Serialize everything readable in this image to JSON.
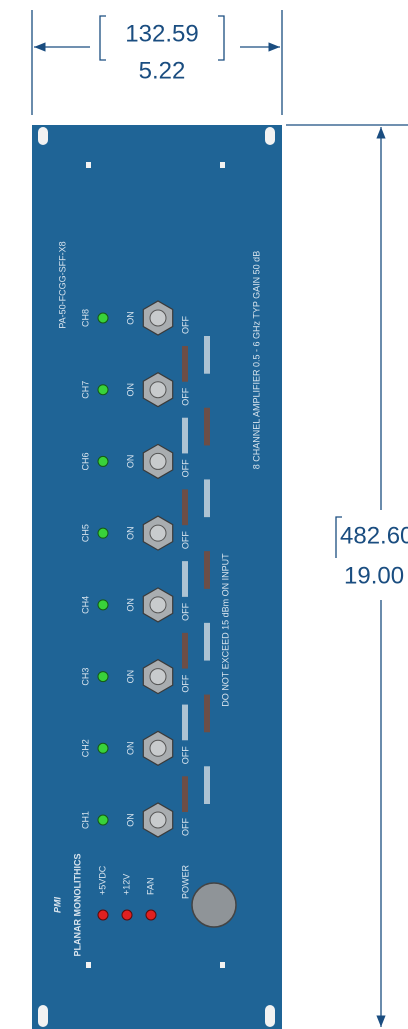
{
  "dimensions": {
    "width_mm": "132.59",
    "width_in": "5.22",
    "height_mm": "482.60",
    "height_in": "19.00"
  },
  "panel": {
    "model": "PA-50-FCGG-SFF-X8",
    "description": "8 CHANNEL AMPLIFIER 0.5 - 6 GHz TYP GAIN 50 dB",
    "warning": "DO NOT EXCEED 15 dBm ON INPUT",
    "brand": "PMI",
    "brand_sub": "PLANAR MONOLITHICS",
    "power_label": "POWER",
    "channels": [
      {
        "led_label": "CH8",
        "on": "ON",
        "off": "OFF"
      },
      {
        "led_label": "CH7",
        "on": "ON",
        "off": "OFF"
      },
      {
        "led_label": "CH6",
        "on": "ON",
        "off": "OFF"
      },
      {
        "led_label": "CH5",
        "on": "ON",
        "off": "OFF"
      },
      {
        "led_label": "CH4",
        "on": "ON",
        "off": "OFF"
      },
      {
        "led_label": "CH3",
        "on": "ON",
        "off": "OFF"
      },
      {
        "led_label": "CH2",
        "on": "ON",
        "off": "OFF"
      },
      {
        "led_label": "CH1",
        "on": "ON",
        "off": "OFF"
      }
    ],
    "status_leds": [
      "+5VDC",
      "+12V",
      "FAN"
    ]
  }
}
